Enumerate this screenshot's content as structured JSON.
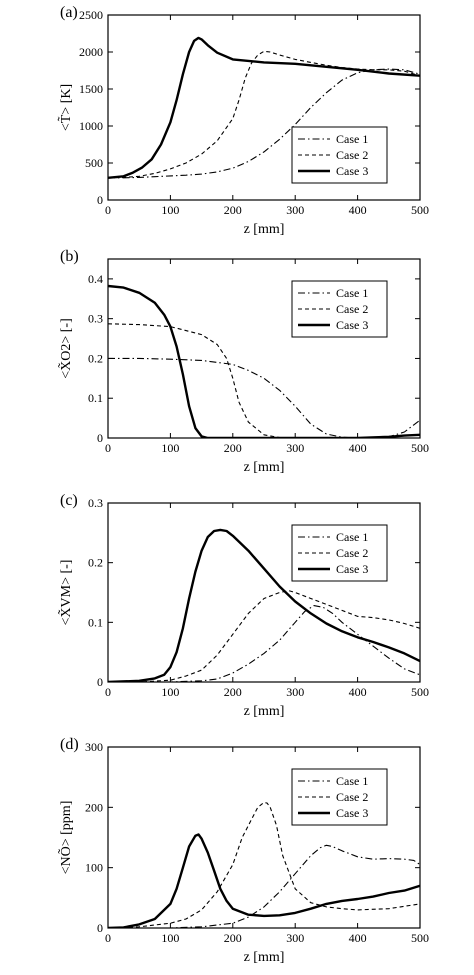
{
  "chart_data": [
    {
      "type": "line",
      "panel_label": "(a)",
      "xlabel": "z [mm]",
      "ylabel": "<T̃> [K]",
      "xlim": [
        0,
        500
      ],
      "ylim": [
        0,
        2500
      ],
      "xticks": [
        0,
        100,
        200,
        300,
        400,
        500
      ],
      "yticks": [
        0,
        500,
        1000,
        1500,
        2000,
        2500
      ],
      "legend_position": "bottom-right",
      "series": [
        {
          "name": "Case 1",
          "style": "dashdot",
          "x": [
            0,
            25,
            50,
            75,
            100,
            125,
            150,
            175,
            200,
            225,
            250,
            275,
            300,
            325,
            350,
            375,
            400,
            425,
            450,
            475,
            500
          ],
          "y": [
            300,
            300,
            305,
            315,
            325,
            335,
            350,
            380,
            430,
            520,
            650,
            820,
            1020,
            1250,
            1450,
            1620,
            1720,
            1760,
            1770,
            1760,
            1700
          ]
        },
        {
          "name": "Case 2",
          "style": "dashed",
          "x": [
            0,
            25,
            50,
            75,
            100,
            125,
            150,
            175,
            200,
            210,
            220,
            230,
            240,
            250,
            260,
            275,
            300,
            325,
            350,
            375,
            400,
            425,
            450,
            475,
            500
          ],
          "y": [
            300,
            305,
            320,
            360,
            420,
            500,
            620,
            800,
            1100,
            1350,
            1650,
            1850,
            1960,
            2010,
            2000,
            1960,
            1900,
            1860,
            1820,
            1790,
            1770,
            1760,
            1760,
            1740,
            1680
          ]
        },
        {
          "name": "Case 3",
          "style": "solid",
          "x": [
            0,
            25,
            40,
            55,
            70,
            85,
            100,
            110,
            120,
            130,
            138,
            145,
            150,
            160,
            175,
            200,
            250,
            300,
            350,
            400,
            450,
            500
          ],
          "y": [
            300,
            320,
            370,
            440,
            550,
            750,
            1050,
            1350,
            1700,
            2000,
            2150,
            2190,
            2170,
            2090,
            1990,
            1900,
            1860,
            1840,
            1800,
            1760,
            1710,
            1680
          ]
        }
      ]
    },
    {
      "type": "line",
      "panel_label": "(b)",
      "xlabel": "z [mm]",
      "ylabel": "<X̃O2> [-]",
      "xlim": [
        0,
        500
      ],
      "ylim": [
        0,
        0.45
      ],
      "xticks": [
        0,
        100,
        200,
        300,
        400,
        500
      ],
      "yticks": [
        0,
        0.1,
        0.2,
        0.3,
        0.4
      ],
      "legend_position": "top-right",
      "series": [
        {
          "name": "Case 1",
          "style": "dashdot",
          "x": [
            0,
            50,
            100,
            150,
            200,
            225,
            250,
            275,
            300,
            325,
            350,
            375,
            400,
            425,
            450,
            475,
            500
          ],
          "y": [
            0.2,
            0.2,
            0.198,
            0.195,
            0.185,
            0.17,
            0.15,
            0.12,
            0.08,
            0.035,
            0.01,
            0.002,
            0.0,
            0.0,
            0.003,
            0.015,
            0.045
          ]
        },
        {
          "name": "Case 2",
          "style": "dashed",
          "x": [
            0,
            50,
            100,
            150,
            175,
            190,
            200,
            210,
            225,
            250,
            275,
            300,
            400,
            450,
            500
          ],
          "y": [
            0.287,
            0.285,
            0.28,
            0.26,
            0.235,
            0.2,
            0.15,
            0.09,
            0.04,
            0.008,
            0.001,
            0.0,
            0.0,
            0.0,
            0.0
          ]
        },
        {
          "name": "Case 3",
          "style": "solid",
          "x": [
            0,
            25,
            50,
            75,
            90,
            100,
            110,
            120,
            130,
            140,
            150,
            160,
            200,
            300,
            400,
            450,
            475,
            500
          ],
          "y": [
            0.382,
            0.378,
            0.365,
            0.34,
            0.31,
            0.28,
            0.23,
            0.16,
            0.08,
            0.025,
            0.004,
            0.0,
            0.0,
            0.0,
            0.0,
            0.003,
            0.006,
            0.008
          ]
        }
      ]
    },
    {
      "type": "line",
      "panel_label": "(c)",
      "xlabel": "z [mm]",
      "ylabel": "<X̃VM> [-]",
      "xlim": [
        0,
        500
      ],
      "ylim": [
        0,
        0.3
      ],
      "xticks": [
        0,
        100,
        200,
        300,
        400,
        500
      ],
      "yticks": [
        0,
        0.1,
        0.2,
        0.3
      ],
      "legend_position": "top-right",
      "series": [
        {
          "name": "Case 1",
          "style": "dashdot",
          "x": [
            0,
            100,
            150,
            175,
            200,
            225,
            250,
            275,
            300,
            315,
            330,
            345,
            360,
            375,
            400,
            425,
            450,
            475,
            500
          ],
          "y": [
            0,
            0.0,
            0.002,
            0.005,
            0.015,
            0.03,
            0.048,
            0.07,
            0.1,
            0.118,
            0.128,
            0.125,
            0.115,
            0.1,
            0.08,
            0.06,
            0.04,
            0.022,
            0.012
          ]
        },
        {
          "name": "Case 2",
          "style": "dashed",
          "x": [
            0,
            50,
            100,
            125,
            150,
            175,
            200,
            225,
            250,
            275,
            290,
            300,
            325,
            350,
            375,
            400,
            425,
            450,
            475,
            500
          ],
          "y": [
            0,
            0.0,
            0.003,
            0.01,
            0.02,
            0.045,
            0.08,
            0.115,
            0.14,
            0.15,
            0.153,
            0.15,
            0.14,
            0.13,
            0.12,
            0.11,
            0.108,
            0.104,
            0.098,
            0.09
          ]
        },
        {
          "name": "Case 3",
          "style": "solid",
          "x": [
            0,
            50,
            75,
            90,
            100,
            110,
            120,
            130,
            140,
            150,
            160,
            170,
            180,
            190,
            200,
            225,
            250,
            275,
            300,
            325,
            350,
            375,
            400,
            425,
            450,
            475,
            500
          ],
          "y": [
            0,
            0.002,
            0.006,
            0.012,
            0.025,
            0.05,
            0.09,
            0.14,
            0.185,
            0.22,
            0.243,
            0.253,
            0.255,
            0.253,
            0.245,
            0.22,
            0.19,
            0.16,
            0.135,
            0.115,
            0.098,
            0.085,
            0.075,
            0.067,
            0.058,
            0.048,
            0.035
          ]
        }
      ]
    },
    {
      "type": "line",
      "panel_label": "(d)",
      "xlabel": "z [mm]",
      "ylabel": "<NÕ> [ppm]",
      "xlim": [
        0,
        500
      ],
      "ylim": [
        0,
        300
      ],
      "xticks": [
        0,
        100,
        200,
        300,
        400,
        500
      ],
      "yticks": [
        0,
        100,
        200,
        300
      ],
      "legend_position": "top-right",
      "series": [
        {
          "name": "Case 1",
          "style": "dashdot",
          "x": [
            0,
            100,
            150,
            200,
            225,
            250,
            275,
            300,
            325,
            340,
            350,
            360,
            375,
            400,
            425,
            450,
            475,
            490,
            500
          ],
          "y": [
            0,
            0,
            2,
            8,
            18,
            35,
            60,
            90,
            120,
            133,
            137,
            135,
            128,
            118,
            114,
            115,
            114,
            112,
            105
          ]
        },
        {
          "name": "Case 2",
          "style": "dashed",
          "x": [
            0,
            50,
            100,
            125,
            150,
            175,
            200,
            215,
            230,
            240,
            250,
            255,
            260,
            270,
            280,
            300,
            325,
            350,
            375,
            400,
            450,
            500
          ],
          "y": [
            0,
            2,
            8,
            15,
            30,
            60,
            105,
            150,
            180,
            200,
            208,
            207,
            200,
            170,
            120,
            65,
            42,
            35,
            32,
            30,
            32,
            40
          ]
        },
        {
          "name": "Case 3",
          "style": "solid",
          "x": [
            0,
            25,
            50,
            75,
            100,
            110,
            120,
            130,
            140,
            145,
            150,
            160,
            170,
            180,
            190,
            200,
            225,
            250,
            275,
            300,
            325,
            350,
            375,
            400,
            425,
            450,
            475,
            500
          ],
          "y": [
            0,
            1,
            6,
            15,
            40,
            65,
            100,
            135,
            153,
            155,
            148,
            125,
            95,
            65,
            45,
            32,
            22,
            20,
            21,
            25,
            32,
            40,
            45,
            48,
            52,
            58,
            62,
            70
          ]
        }
      ]
    }
  ]
}
